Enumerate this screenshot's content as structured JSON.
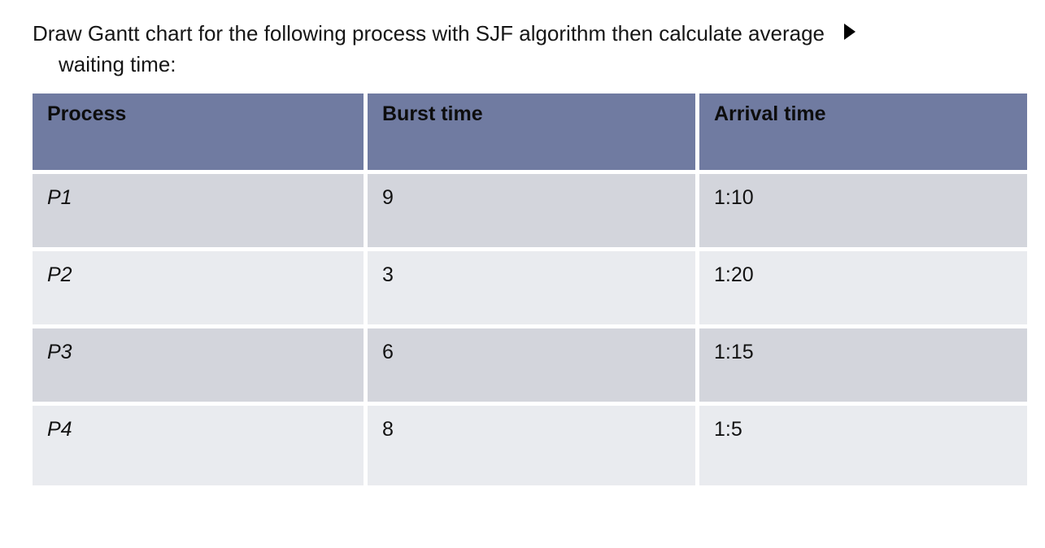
{
  "question": {
    "line1": "Draw Gantt chart for the following process with SJF algorithm then calculate average",
    "line2": "waiting time:"
  },
  "icons": {
    "play_cursor": "right-pointing-triangle"
  },
  "colors": {
    "header_bg": "#707BA1",
    "row_odd_bg": "#D3D5DC",
    "row_even_bg": "#E9EBEF",
    "text": "#161616",
    "page_bg": "#FFFFFF"
  },
  "table": {
    "headers": [
      "Process",
      "Burst time",
      "Arrival time"
    ],
    "rows": [
      [
        "P1",
        "9",
        "1:10"
      ],
      [
        "P2",
        "3",
        "1:20"
      ],
      [
        "P3",
        "6",
        "1:15"
      ],
      [
        "P4",
        "8",
        "1:5"
      ]
    ]
  }
}
